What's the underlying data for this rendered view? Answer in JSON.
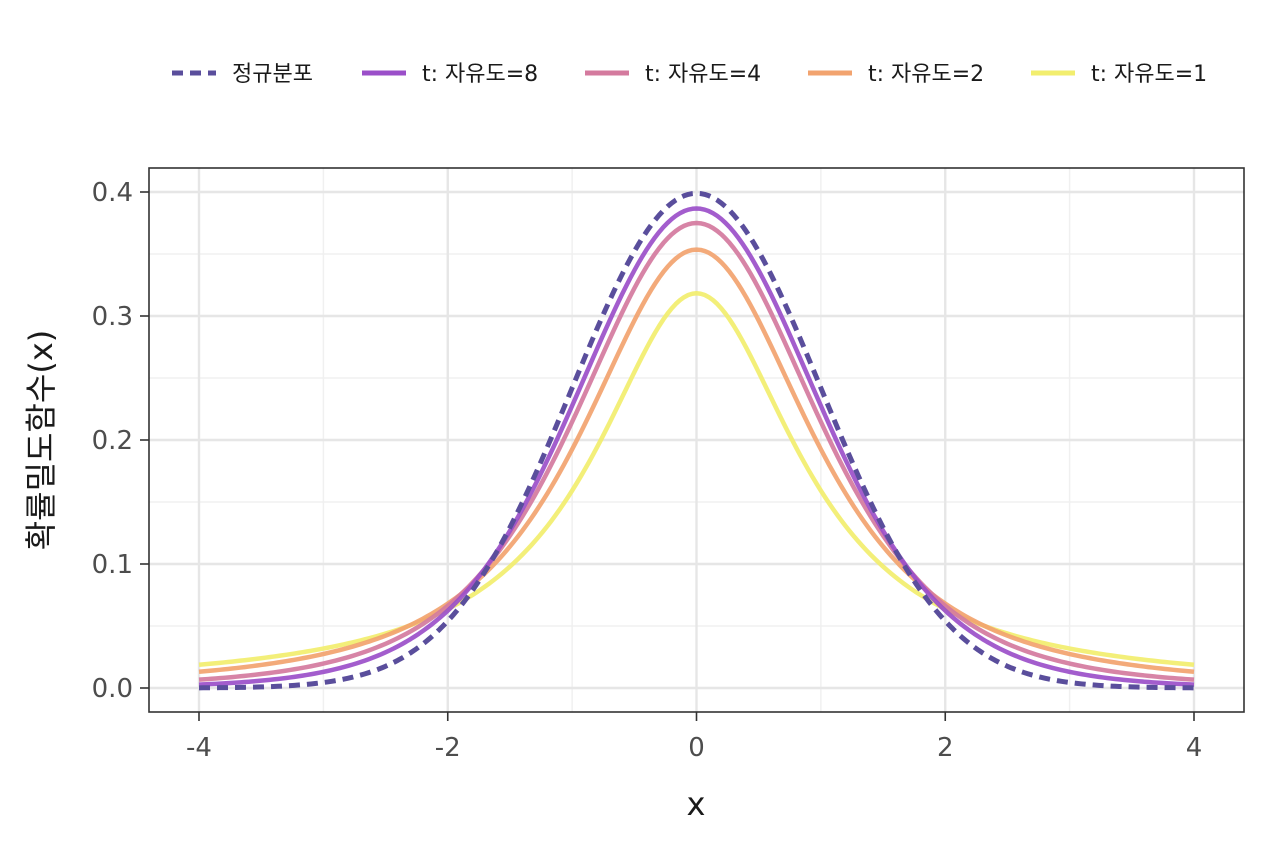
{
  "chart_data": {
    "type": "line",
    "title": "",
    "xlabel": "x",
    "ylabel": "확률밀도함수(x)",
    "xlim": [
      -4,
      4
    ],
    "ylim": [
      0,
      0.4
    ],
    "x_ticks": [
      -4,
      -2,
      0,
      2,
      4
    ],
    "x_tick_labels": [
      "-4",
      "-2",
      "0",
      "2",
      "4"
    ],
    "y_ticks": [
      0.0,
      0.1,
      0.2,
      0.3,
      0.4
    ],
    "y_tick_labels": [
      "0.0",
      "0.1",
      "0.2",
      "0.3",
      "0.4"
    ],
    "grid": true,
    "legend_position": "top",
    "series": [
      {
        "name": "정규분포",
        "dist": "normal",
        "df": null,
        "color": "#5a4e9c",
        "dashed": true,
        "x": [
          -4,
          -3.5,
          -3,
          -2.5,
          -2,
          -1.5,
          -1,
          -0.5,
          0,
          0.5,
          1,
          1.5,
          2,
          2.5,
          3,
          3.5,
          4
        ],
        "y": [
          0.0001,
          0.0009,
          0.0044,
          0.0175,
          0.054,
          0.1295,
          0.242,
          0.3521,
          0.3989,
          0.3521,
          0.242,
          0.1295,
          0.054,
          0.0175,
          0.0044,
          0.0009,
          0.0001
        ]
      },
      {
        "name": "t: 자유도=8",
        "dist": "t",
        "df": 8,
        "color": "#9b4fc9",
        "dashed": false,
        "x": [
          -4,
          -3,
          -2,
          -1,
          0,
          1,
          2,
          3,
          4
        ],
        "y": [
          0.0034,
          0.0147,
          0.0624,
          0.2276,
          0.3867,
          0.2276,
          0.0624,
          0.0147,
          0.0034
        ]
      },
      {
        "name": "t: 자유도=4",
        "dist": "t",
        "df": 4,
        "color": "#d47a9e",
        "dashed": false,
        "x": [
          -4,
          -3,
          -2,
          -1,
          0,
          1,
          2,
          3,
          4
        ],
        "y": [
          0.0067,
          0.0197,
          0.0663,
          0.2147,
          0.375,
          0.2147,
          0.0663,
          0.0197,
          0.0067
        ]
      },
      {
        "name": "t: 자유도=2",
        "dist": "t",
        "df": 2,
        "color": "#f2a36f",
        "dashed": false,
        "x": [
          -4,
          -3,
          -2,
          -1,
          0,
          1,
          2,
          3,
          4
        ],
        "y": [
          0.0131,
          0.0274,
          0.068,
          0.1925,
          0.3536,
          0.1925,
          0.068,
          0.0274,
          0.0131
        ]
      },
      {
        "name": "t: 자유도=1",
        "dist": "t",
        "df": 1,
        "color": "#f2ee6e",
        "dashed": false,
        "x": [
          -4,
          -3,
          -2,
          -1,
          0,
          1,
          2,
          3,
          4
        ],
        "y": [
          0.0187,
          0.0318,
          0.0637,
          0.1592,
          0.3183,
          0.1592,
          0.0637,
          0.0318,
          0.0187
        ]
      }
    ]
  }
}
